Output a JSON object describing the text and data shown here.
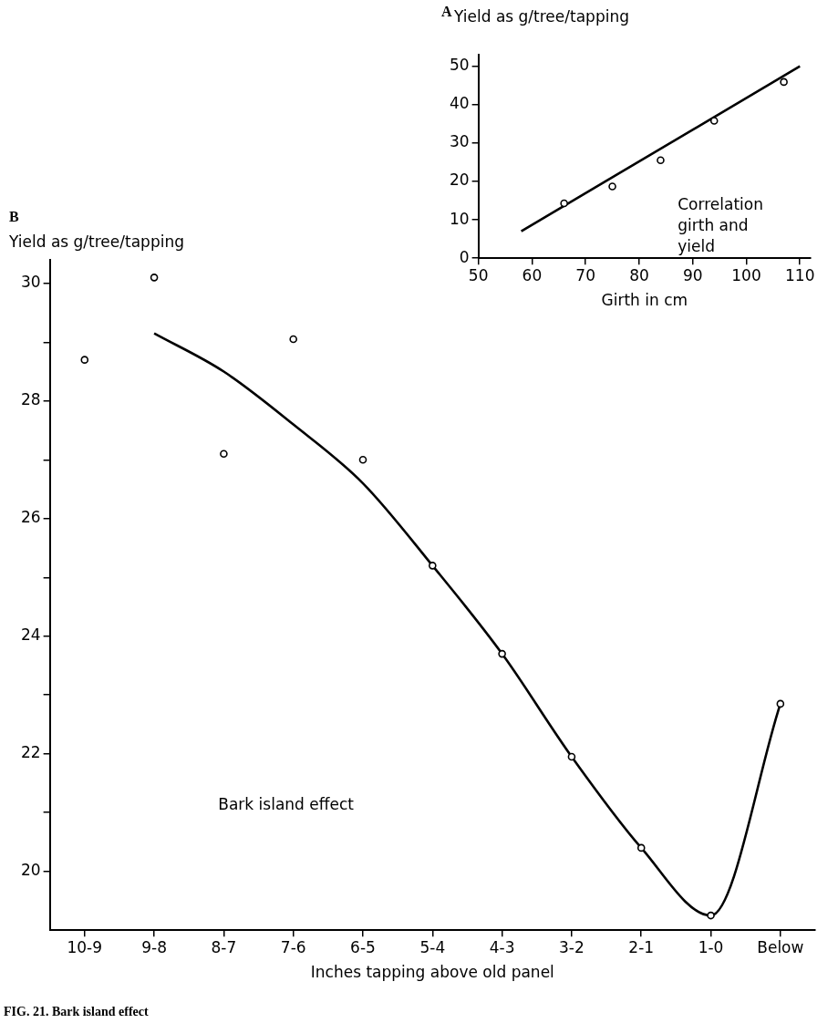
{
  "chart_data": [
    {
      "type": "scatter",
      "title": "A",
      "ylabel": "Yield as g/tree/tapping",
      "xlabel": "Girth in cm",
      "annotations": [
        "Correlation girth and yield"
      ],
      "series": [
        {
          "type": "scatter",
          "color": "#000000",
          "marker": "circle",
          "x": [
            66,
            75,
            84,
            94,
            107
          ],
          "values": [
            14.3,
            18.7,
            25.5,
            35.8,
            45.9
          ]
        },
        {
          "type": "line",
          "color": "#000000",
          "marker": "none",
          "x": [
            58,
            110
          ],
          "values": [
            7,
            50
          ]
        }
      ],
      "xlim": [
        50,
        112
      ],
      "xticks": [
        50,
        60,
        70,
        80,
        90,
        100,
        110
      ],
      "ylim": [
        0,
        53
      ],
      "yticks": [
        0,
        10,
        20,
        30,
        40,
        50
      ],
      "grid": false,
      "legend": false
    },
    {
      "type": "scatter",
      "title": "B",
      "ylabel": "Yield as g/tree/tapping",
      "xlabel": "Inches tapping above old panel",
      "annotations": [
        "Bark island effect",
        "FIG. 21. Bark island effect"
      ],
      "categories": [
        "10-9",
        "9-8",
        "8-7",
        "7-6",
        "6-5",
        "5-4",
        "4-3",
        "3-2",
        "2-1",
        "1-0",
        "Below"
      ],
      "series": [
        {
          "type": "scatter",
          "color": "#000000",
          "marker": "circle",
          "values": [
            28.7,
            30.1,
            27.1,
            29.05,
            27.0,
            25.2,
            23.7,
            21.95,
            20.4,
            19.25,
            22.85
          ]
        },
        {
          "type": "line",
          "color": "#000000",
          "marker": "none",
          "values": [
            null,
            29.15,
            28.5,
            27.6,
            26.6,
            25.2,
            23.7,
            21.95,
            20.4,
            19.25,
            22.85
          ]
        }
      ],
      "ylim": [
        19,
        30.4
      ],
      "yticks": [
        20,
        {
          "value": 21,
          "label": null
        },
        22,
        {
          "value": 23,
          "label": null
        },
        24,
        {
          "value": 25,
          "label": null
        },
        26,
        {
          "value": 27,
          "label": null
        },
        28,
        {
          "value": 29,
          "label": null
        },
        30
      ],
      "grid": false,
      "legend": false
    }
  ]
}
